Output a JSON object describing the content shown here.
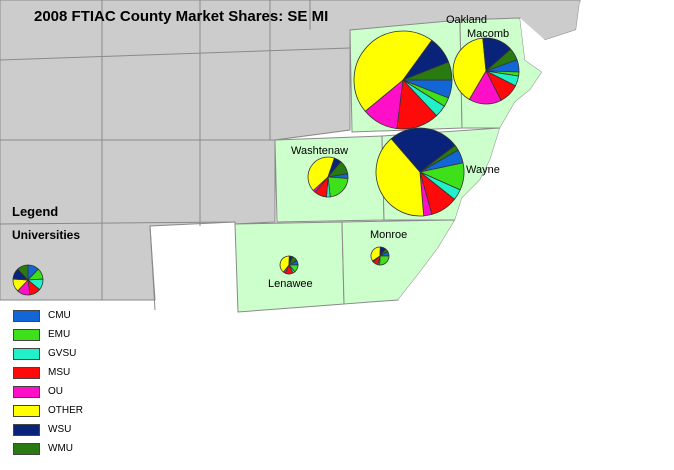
{
  "title": "2008 FTIAC County Market Shares: SE MI",
  "legend": {
    "heading": "Legend",
    "subheading": "Universities",
    "items": [
      {
        "label": "CMU",
        "color": "#1266d6"
      },
      {
        "label": "EMU",
        "color": "#3ee01a"
      },
      {
        "label": "GVSU",
        "color": "#22f0c8"
      },
      {
        "label": "MSU",
        "color": "#ff0a0a"
      },
      {
        "label": "OU",
        "color": "#ff10c8"
      },
      {
        "label": "OTHER",
        "color": "#ffff00"
      },
      {
        "label": "WSU",
        "color": "#0a237a"
      },
      {
        "label": "WMU",
        "color": "#2a7a12"
      }
    ]
  },
  "counties": [
    {
      "name": "Oakland",
      "shares": {
        "CMU": 6,
        "EMU": 3,
        "GVSU": 4,
        "MSU": 14,
        "OU": 12,
        "OTHER": 46,
        "WSU": 9,
        "WMU": 6
      }
    },
    {
      "name": "Macomb",
      "shares": {
        "CMU": 6,
        "EMU": 2,
        "GVSU": 5,
        "MSU": 10,
        "OU": 16,
        "OTHER": 40,
        "WSU": 15,
        "WMU": 6
      }
    },
    {
      "name": "Washtenaw",
      "shares": {
        "CMU": 4,
        "EMU": 22,
        "GVSU": 3,
        "MSU": 10,
        "OU": 2,
        "OTHER": 42,
        "WSU": 6,
        "WMU": 11
      }
    },
    {
      "name": "Wayne",
      "shares": {
        "CMU": 5,
        "EMU": 10,
        "GVSU": 4,
        "MSU": 10,
        "OU": 3,
        "OTHER": 40,
        "WSU": 26,
        "WMU": 2
      }
    },
    {
      "name": "Monroe",
      "shares": {
        "CMU": 8,
        "EMU": 26,
        "GVSU": 3,
        "MSU": 10,
        "OU": 2,
        "OTHER": 35,
        "WSU": 10,
        "WMU": 6
      }
    },
    {
      "name": "Lenawee",
      "shares": {
        "CMU": 8,
        "EMU": 14,
        "GVSU": 4,
        "MSU": 14,
        "OU": 4,
        "OTHER": 40,
        "WSU": 6,
        "WMU": 10
      }
    }
  ],
  "legend_sample_shares": {
    "CMU": 12,
    "EMU": 12,
    "GVSU": 12,
    "MSU": 12,
    "OU": 14,
    "OTHER": 14,
    "WSU": 12,
    "WMU": 12
  }
}
